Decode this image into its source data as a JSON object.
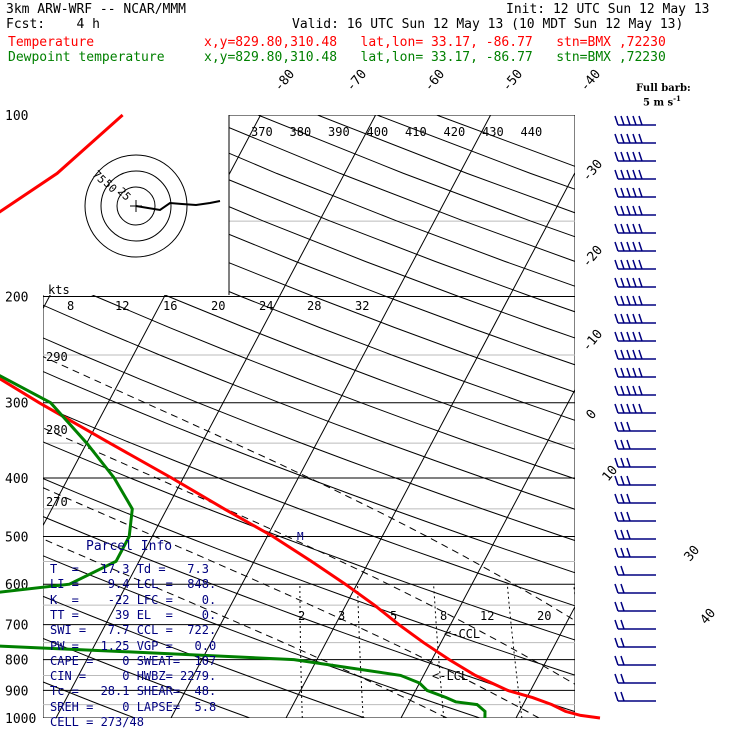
{
  "header": {
    "model": "3km ARW-WRF -- NCAR/MMM",
    "init": "Init: 12 UTC Sun 12 May 13",
    "fcst": "Fcst:    4 h",
    "valid": "Valid: 16 UTC Sun 12 May 13 (10 MDT Sun 12 May 13)",
    "temp_label": "Temperature",
    "dew_label": "Dewpoint temperature",
    "temp_loc": "x,y=829.80,310.48   lat,lon= 33.17, -86.77   stn=BMX ,72230",
    "dew_loc": "x,y=829.80,310.48   lat,lon= 33.17, -86.77   stn=BMX ,72230",
    "barb_title_1": "Full barb:",
    "barb_title_2": "5 m s",
    "barb_title_exp": "-1"
  },
  "parcel": {
    "title": "Parcel Info",
    "rows": [
      "T  =   17.3 Td =   7.3",
      "LI =    9.4 LCL =  848.",
      "K  =    -22 LFC =    0.",
      "TT =     39 EL  =    0.",
      "SWI =   7.7 CCL =  722.",
      "PW =   1.25 VGP =   0.0",
      "CAPE =    0 SWEAT=  107",
      "CIN =     0 HWBZ= 2279.",
      "Tc =   28.1 SHEAR=  48.",
      "SREH =    0 LAPSE=  5.8",
      "CELL = 273/48"
    ]
  },
  "annotations": {
    "ccl": "<-CCL",
    "lcl": "<-LCL",
    "kts": "kts",
    "m_marker": "M"
  },
  "colors": {
    "temperature": "#ff0000",
    "dewpoint": "#008000",
    "barbs": "#000080",
    "dry_adiabat": "#000080"
  },
  "chart_data": {
    "type": "line",
    "pressure_levels": [
      100,
      200,
      300,
      400,
      500,
      600,
      700,
      800,
      900,
      1000
    ],
    "temp_isotherm_labels": [
      -80,
      -70,
      -60,
      -50,
      -40,
      -30,
      -20,
      -10,
      0,
      10,
      20,
      30,
      40
    ],
    "theta_labels": [
      370,
      380,
      390,
      400,
      410,
      420,
      430,
      440
    ],
    "theta_left_labels": [
      290,
      280,
      270
    ],
    "mixing_ratio_labels": [
      2,
      3,
      5,
      8,
      12,
      20
    ],
    "hodograph_speed_labels": [
      8,
      12,
      16,
      20,
      24,
      28,
      32
    ],
    "hodograph_ring_labels": [
      75,
      50,
      25
    ],
    "series": [
      {
        "name": "Temperature",
        "p": [
          1000,
          990,
          975,
          950,
          925,
          900,
          850,
          800,
          750,
          700,
          650,
          600,
          550,
          500,
          450,
          400,
          350,
          300,
          250,
          200,
          175,
          150,
          125,
          100
        ],
        "t": [
          17.3,
          15.5,
          14,
          12.5,
          10.5,
          8,
          4.5,
          1.5,
          -1.5,
          -4.5,
          -7.5,
          -11,
          -15,
          -19.5,
          -25,
          -31,
          -38,
          -46,
          -55,
          -65,
          -63,
          -59,
          -55,
          -52
        ]
      },
      {
        "name": "Dewpoint temperature",
        "p": [
          1000,
          975,
          950,
          940,
          925,
          900,
          875,
          850,
          800,
          775,
          750,
          725,
          700,
          650,
          600,
          550,
          500,
          450,
          400,
          350,
          300,
          250,
          200,
          175,
          150,
          125,
          100
        ],
        "t": [
          7.3,
          7,
          6,
          4,
          3,
          1,
          0,
          -2,
          -12,
          -28,
          -45,
          -55,
          -70,
          -50,
          -35,
          -32,
          -32,
          -33,
          -36,
          -40,
          -45,
          -55,
          -70,
          -74,
          -76,
          -80,
          -84
        ]
      }
    ]
  }
}
